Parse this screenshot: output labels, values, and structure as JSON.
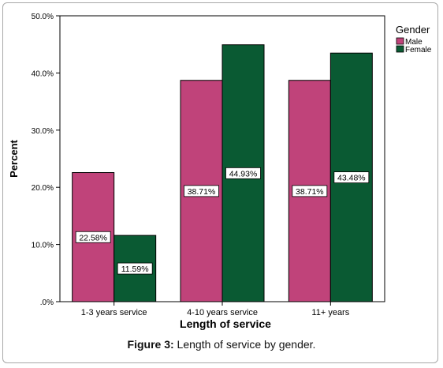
{
  "chart_data": {
    "type": "bar",
    "categories": [
      "1-3 years service",
      "4-10 years service",
      "11+ years"
    ],
    "series": [
      {
        "name": "Male",
        "values": [
          22.58,
          38.71,
          38.71
        ],
        "labels": [
          "22.58%",
          "38.71%",
          "38.71%"
        ],
        "color": "#c0437a"
      },
      {
        "name": "Female",
        "values": [
          11.59,
          44.93,
          43.48
        ],
        "labels": [
          "11.59%",
          "44.93%",
          "43.48%"
        ],
        "color": "#0a5a33"
      }
    ],
    "xlabel": "Length of service",
    "ylabel": "Percent",
    "ylim": [
      0,
      50
    ],
    "yticks": [
      0,
      10,
      20,
      30,
      40,
      50
    ],
    "ytick_labels": [
      ".0%",
      "10.0%",
      "20.0%",
      "30.0%",
      "40.0%",
      "50.0%"
    ],
    "legend_title": "Gender",
    "legend_position": "top-right",
    "grid": false
  },
  "caption": {
    "label": "Figure 3:",
    "text": " Length of service by gender."
  }
}
